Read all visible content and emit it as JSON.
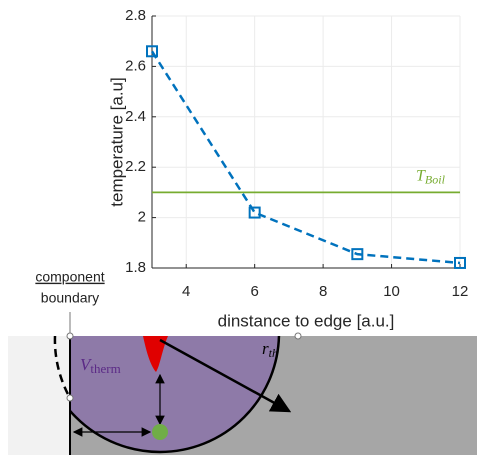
{
  "chart_data": {
    "type": "line",
    "x": [
      3,
      6,
      9,
      12
    ],
    "series": [
      {
        "color": "#0072bd",
        "values": [
          2.66,
          2.02,
          1.855,
          1.82
        ]
      }
    ],
    "xlabel": "dinstance to edge [a.u.]",
    "ylabel": "temperature [a.u]",
    "xlim": [
      3,
      12
    ],
    "xticks": [
      4,
      6,
      8,
      10,
      12
    ],
    "ylim": [
      1.8,
      2.8
    ],
    "yticks": [
      1.8,
      2,
      2.2,
      2.4,
      2.6,
      2.8
    ],
    "grid": true,
    "hline": {
      "value": 2.1,
      "color": "#77ac30",
      "label": "T",
      "label_subscript": "Boil"
    }
  },
  "diagram": {
    "boundary_label": [
      "component",
      "boundary"
    ],
    "volume_label": {
      "text": "V",
      "subscript": "therm"
    },
    "radius_label": {
      "text": "r",
      "subscript": "th"
    }
  }
}
